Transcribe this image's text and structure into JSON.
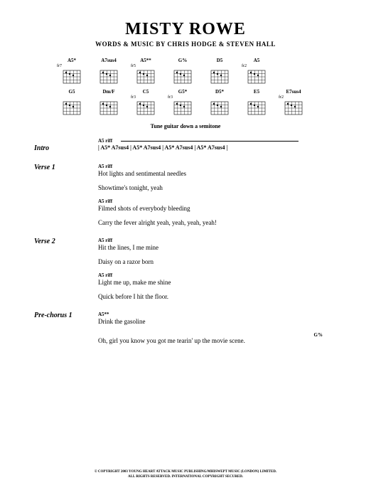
{
  "title": "MISTY ROWE",
  "credits": "WORDS & MUSIC BY CHRIS HODGE & STEVEN HALL",
  "tuning_note": "Tune guitar down a semitone",
  "chord_row1": [
    {
      "name": "A5*",
      "fret": "fr7"
    },
    {
      "name": "A7sus4",
      "fret": ""
    },
    {
      "name": "A5**",
      "fret": "fr5"
    },
    {
      "name": "G%",
      "fret": ""
    },
    {
      "name": "D5",
      "fret": ""
    },
    {
      "name": "A5",
      "fret": "fr2"
    }
  ],
  "chord_row2": [
    {
      "name": "G5",
      "fret": ""
    },
    {
      "name": "Dm/F",
      "fret": ""
    },
    {
      "name": "C5",
      "fret": "fr3"
    },
    {
      "name": "G5*",
      "fret": "fr3"
    },
    {
      "name": "D5*",
      "fret": ""
    },
    {
      "name": "E5",
      "fret": ""
    },
    {
      "name": "E7sus4",
      "fret": "fr2"
    }
  ],
  "intro": {
    "label": "Intro",
    "riff": "A5 riff",
    "chords": "| A5*  A7sus4 | A5*  A7sus4 | A5*  A7sus4 | A5*  A7sus4 |"
  },
  "verse1": {
    "label": "Verse 1",
    "lines": [
      {
        "riff": "A5 riff",
        "text": "Hot lights and sentimental needles"
      },
      {
        "riff": "",
        "text": "Showtime's tonight, yeah"
      },
      {
        "riff": "A5 riff",
        "text": "Filmed shots of everybody bleeding"
      },
      {
        "riff": "",
        "text": "Carry the fever alright yeah, yeah, yeah, yeah!"
      }
    ]
  },
  "verse2": {
    "label": "Verse 2",
    "lines": [
      {
        "riff": "A5 riff",
        "text": "Hit the lines, I me mine"
      },
      {
        "riff": "",
        "text": "Daisy on a razor born"
      },
      {
        "riff": "A5 riff",
        "text": "Light me up, make me shine"
      },
      {
        "riff": "",
        "text": "Quick before I hit the floor."
      }
    ]
  },
  "prechorus1": {
    "label": "Pre-chorus 1",
    "lines": [
      {
        "riff": "A5**",
        "text": "Drink the gasoline"
      },
      {
        "riff": "",
        "text": "Oh, girl you know you got me tearin' up the movie scene.",
        "endchord": "G%"
      }
    ]
  },
  "copyright": "© COPYRIGHT 2003 YOUNG HEART ATTACK MUSIC PUBLISHING/MHISWEPT MUSIC (LONDON) LIMITED.\nALL RIGHTS RESERVED. INTERNATIONAL COPYRIGHT SECURED."
}
